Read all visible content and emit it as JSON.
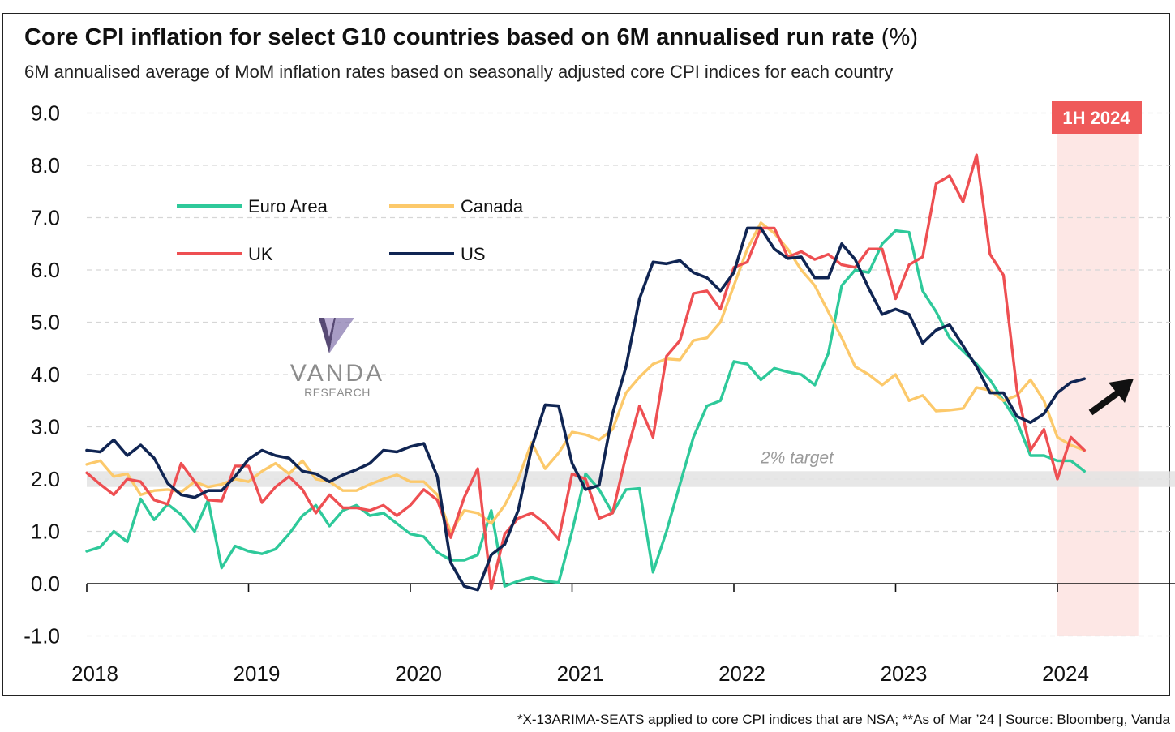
{
  "header": {
    "title": "Core CPI inflation for select G10 countries based on 6M annualised run rate",
    "title_unit": "(%)",
    "subtitle": "6M annualised average of MoM inflation rates based on seasonally adjusted core CPI indices for each country"
  },
  "footnote": "*X-13ARIMA-SEATS applied to core CPI indices that are NSA; **As of Mar ’24 | Source: Bloomberg, Vanda",
  "watermark": {
    "name": "VANDA",
    "tagline": "RESEARCH"
  },
  "colors": {
    "euro": "#2ec99a",
    "canada": "#fcc96b",
    "uk": "#ee4f52",
    "us": "#102553",
    "target_band": "#e3e3e3",
    "highlight": "#fde7e5",
    "highlight_label_bg": "#ef5a5a"
  },
  "chart_data": {
    "type": "line",
    "title": "Core CPI inflation for select G10 countries based on 6M annualised run rate (%)",
    "xlabel": "",
    "ylabel": "",
    "ylim": [
      -1.0,
      9.0
    ],
    "yticks": [
      9.0,
      8.0,
      7.0,
      6.0,
      5.0,
      4.0,
      3.0,
      2.0,
      1.0,
      0.0,
      -1.0
    ],
    "ytick_labels": [
      "9.0",
      "8.0",
      "7.0",
      "6.0",
      "5.0",
      "4.0",
      "3.0",
      "2.0",
      "1.0",
      "0.0",
      "-1.0"
    ],
    "x_start": "2018-01",
    "x_end": "2024-03",
    "x_axis_max_years": 7.0,
    "xticks": [
      "2018",
      "2019",
      "2020",
      "2021",
      "2022",
      "2023",
      "2024"
    ],
    "grid": "horizontal dashed",
    "target_band": {
      "low": 1.85,
      "high": 2.15,
      "label": "2% target"
    },
    "highlight_region": {
      "from_year": 6.0,
      "to_year": 6.5,
      "label": "1H 2024"
    },
    "annotation": "up arrow",
    "series": [
      {
        "name": "Euro Area",
        "key": "euro",
        "values": [
          0.62,
          0.7,
          1.0,
          0.8,
          1.62,
          1.22,
          1.52,
          1.32,
          1.0,
          1.6,
          0.3,
          0.72,
          0.62,
          0.57,
          0.66,
          0.95,
          1.3,
          1.5,
          1.1,
          1.4,
          1.5,
          1.3,
          1.35,
          1.15,
          0.95,
          0.9,
          0.6,
          0.45,
          0.45,
          0.55,
          1.4,
          -0.05,
          0.05,
          0.12,
          0.05,
          0.02,
          1.0,
          2.1,
          1.8,
          1.35,
          1.8,
          1.82,
          0.22,
          1.0,
          1.9,
          2.8,
          3.4,
          3.5,
          4.25,
          4.2,
          3.9,
          4.12,
          4.05,
          4.0,
          3.8,
          4.4,
          5.7,
          6.0,
          5.95,
          6.5,
          6.75,
          6.72,
          5.6,
          5.2,
          4.7,
          4.45,
          4.2,
          3.9,
          3.5,
          3.1,
          2.45,
          2.45,
          2.35,
          2.35,
          2.15
        ]
      },
      {
        "name": "Canada",
        "key": "canada",
        "values": [
          2.28,
          2.35,
          2.05,
          2.1,
          1.7,
          1.78,
          1.8,
          1.75,
          1.95,
          1.85,
          1.9,
          2.0,
          1.95,
          2.15,
          2.3,
          2.1,
          2.35,
          2.0,
          1.95,
          1.78,
          1.78,
          1.9,
          2.0,
          2.08,
          1.95,
          1.95,
          1.7,
          0.98,
          1.4,
          1.35,
          1.15,
          1.5,
          2.0,
          2.7,
          2.2,
          2.5,
          2.9,
          2.85,
          2.75,
          2.95,
          3.65,
          3.95,
          4.2,
          4.3,
          4.28,
          4.65,
          4.7,
          5.0,
          5.7,
          6.4,
          6.9,
          6.7,
          6.4,
          6.0,
          5.7,
          5.2,
          4.7,
          4.15,
          4.0,
          3.8,
          4.0,
          3.5,
          3.6,
          3.3,
          3.32,
          3.35,
          3.75,
          3.7,
          3.5,
          3.6,
          3.9,
          3.5,
          2.8,
          2.65,
          2.55
        ]
      },
      {
        "name": "UK",
        "key": "uk",
        "values": [
          2.12,
          1.9,
          1.7,
          2.0,
          1.95,
          1.6,
          1.52,
          2.3,
          1.95,
          1.6,
          1.58,
          2.25,
          2.25,
          1.55,
          1.85,
          2.05,
          1.8,
          1.35,
          1.7,
          1.45,
          1.45,
          1.4,
          1.5,
          1.3,
          1.5,
          1.8,
          1.6,
          0.88,
          1.65,
          2.2,
          -0.1,
          0.95,
          1.25,
          1.35,
          1.15,
          0.85,
          2.1,
          2.0,
          1.25,
          1.35,
          2.45,
          3.4,
          2.8,
          4.35,
          4.65,
          5.55,
          5.6,
          5.25,
          6.05,
          6.15,
          6.8,
          6.8,
          6.25,
          6.35,
          6.2,
          6.3,
          6.1,
          6.05,
          6.4,
          6.4,
          5.45,
          6.1,
          6.25,
          7.65,
          7.8,
          7.3,
          8.2,
          6.3,
          5.9,
          3.7,
          2.55,
          2.95,
          2.0,
          2.8,
          2.55
        ]
      },
      {
        "name": "US",
        "key": "us",
        "values": [
          2.55,
          2.52,
          2.75,
          2.45,
          2.65,
          2.4,
          1.92,
          1.7,
          1.65,
          1.78,
          1.78,
          2.05,
          2.38,
          2.55,
          2.45,
          2.4,
          2.15,
          2.1,
          1.95,
          2.08,
          2.18,
          2.3,
          2.55,
          2.52,
          2.62,
          2.68,
          2.05,
          0.4,
          -0.05,
          -0.12,
          0.55,
          0.75,
          1.4,
          2.6,
          3.42,
          3.4,
          2.3,
          1.8,
          1.88,
          3.25,
          4.15,
          5.45,
          6.15,
          6.12,
          6.18,
          5.95,
          5.85,
          5.6,
          5.95,
          6.8,
          6.8,
          6.4,
          6.22,
          6.25,
          5.85,
          5.85,
          6.5,
          6.2,
          5.65,
          5.15,
          5.25,
          5.15,
          4.6,
          4.85,
          4.95,
          4.55,
          4.15,
          3.65,
          3.65,
          3.2,
          3.08,
          3.25,
          3.65,
          3.85,
          3.92
        ]
      }
    ]
  }
}
